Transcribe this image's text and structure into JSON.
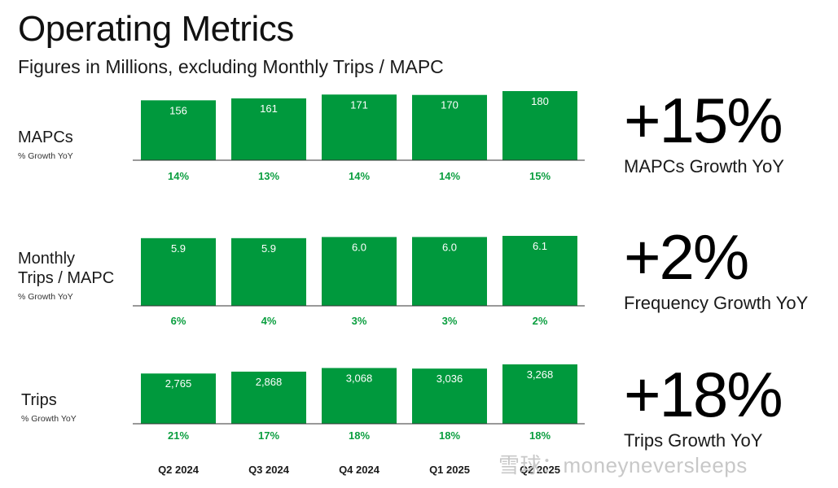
{
  "header": {
    "title": "Operating Metrics",
    "subtitle": "Figures in Millions, excluding Monthly Trips / MAPC"
  },
  "chart_data": {
    "type": "bar",
    "categories": [
      "Q2 2024",
      "Q3 2024",
      "Q4 2024",
      "Q1 2025",
      "Q2 2025"
    ],
    "bar_color": "#00993d",
    "growth_color": "#0a9e3f",
    "rows": [
      {
        "label_lines": [
          "MAPCs"
        ],
        "sublabel": "% Growth YoY",
        "values": [
          156,
          161,
          171,
          170,
          180
        ],
        "value_labels": [
          "156",
          "161",
          "171",
          "170",
          "180"
        ],
        "growth": [
          "14%",
          "13%",
          "14%",
          "14%",
          "15%"
        ],
        "summary_value": "+15%",
        "summary_label": "MAPCs Growth YoY"
      },
      {
        "label_lines": [
          "Monthly",
          "Trips / MAPC"
        ],
        "sublabel": "% Growth YoY",
        "values": [
          5.9,
          5.9,
          6.0,
          6.0,
          6.1
        ],
        "value_labels": [
          "5.9",
          "5.9",
          "6.0",
          "6.0",
          "6.1"
        ],
        "growth": [
          "6%",
          "4%",
          "3%",
          "3%",
          "2%"
        ],
        "summary_value": "+2%",
        "summary_label": "Frequency Growth YoY"
      },
      {
        "label_lines": [
          "Trips"
        ],
        "sublabel": "% Growth YoY",
        "values": [
          2765,
          2868,
          3068,
          3036,
          3268
        ],
        "value_labels": [
          "2,765",
          "2,868",
          "3,068",
          "3,036",
          "3,268"
        ],
        "growth": [
          "21%",
          "17%",
          "18%",
          "18%",
          "18%"
        ],
        "summary_value": "+18%",
        "summary_label": "Trips Growth YoY"
      }
    ]
  },
  "watermark": "雪球：moneyneversleeps"
}
